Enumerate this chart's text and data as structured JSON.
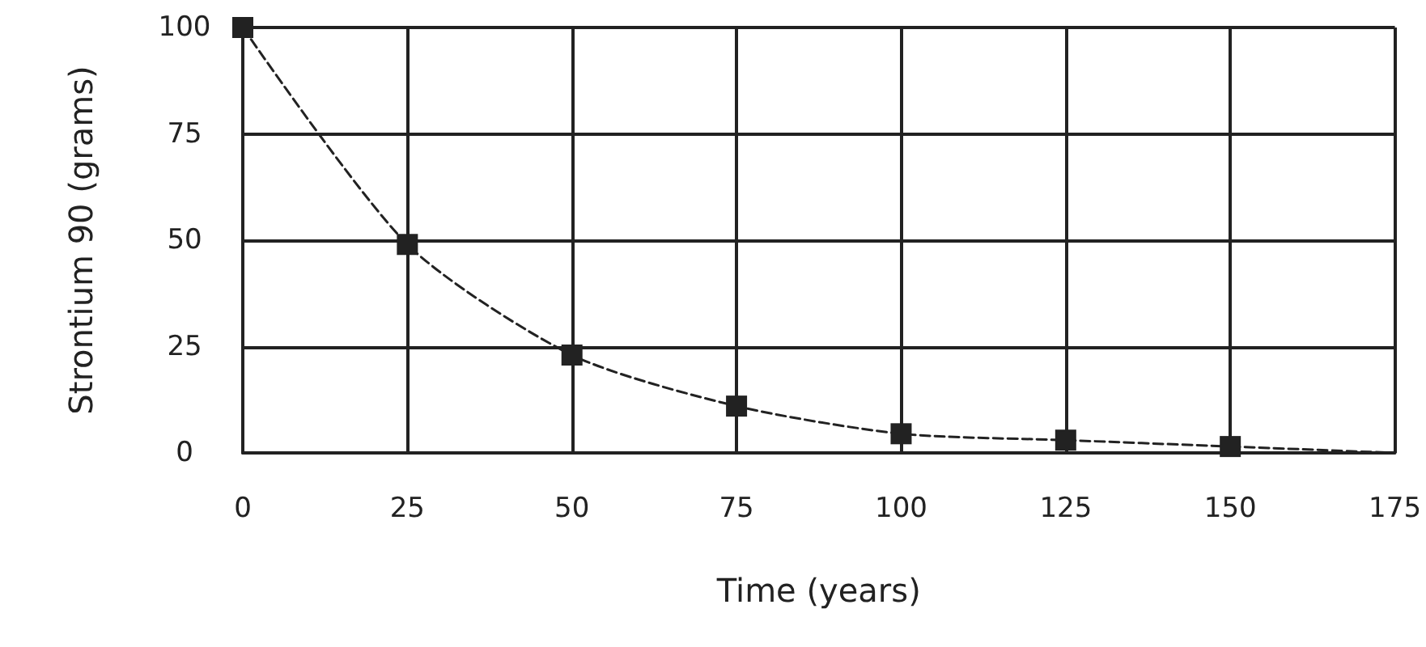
{
  "chart_data": {
    "type": "line",
    "xlabel": "Time (years)",
    "ylabel": "Strontium 90 (grams)",
    "xlim": [
      0,
      175
    ],
    "xticks": [
      0,
      25,
      50,
      75,
      100,
      125,
      150,
      175
    ],
    "ylim": [
      0,
      100
    ],
    "yticks": [
      0,
      25,
      50,
      75,
      100
    ],
    "grid": true,
    "series": [
      {
        "color": "#222222",
        "x": [
          0,
          25,
          50,
          75,
          100,
          125,
          150
        ],
        "values": [
          100,
          49,
          23,
          11,
          4.5,
          3,
          1.5
        ],
        "marker": "square",
        "line_style": "dashed"
      },
      {
        "color": "#222222",
        "x": [
          150,
          175
        ],
        "values": [
          1.5,
          0
        ],
        "marker": "none",
        "line_style": "dashed"
      }
    ]
  }
}
